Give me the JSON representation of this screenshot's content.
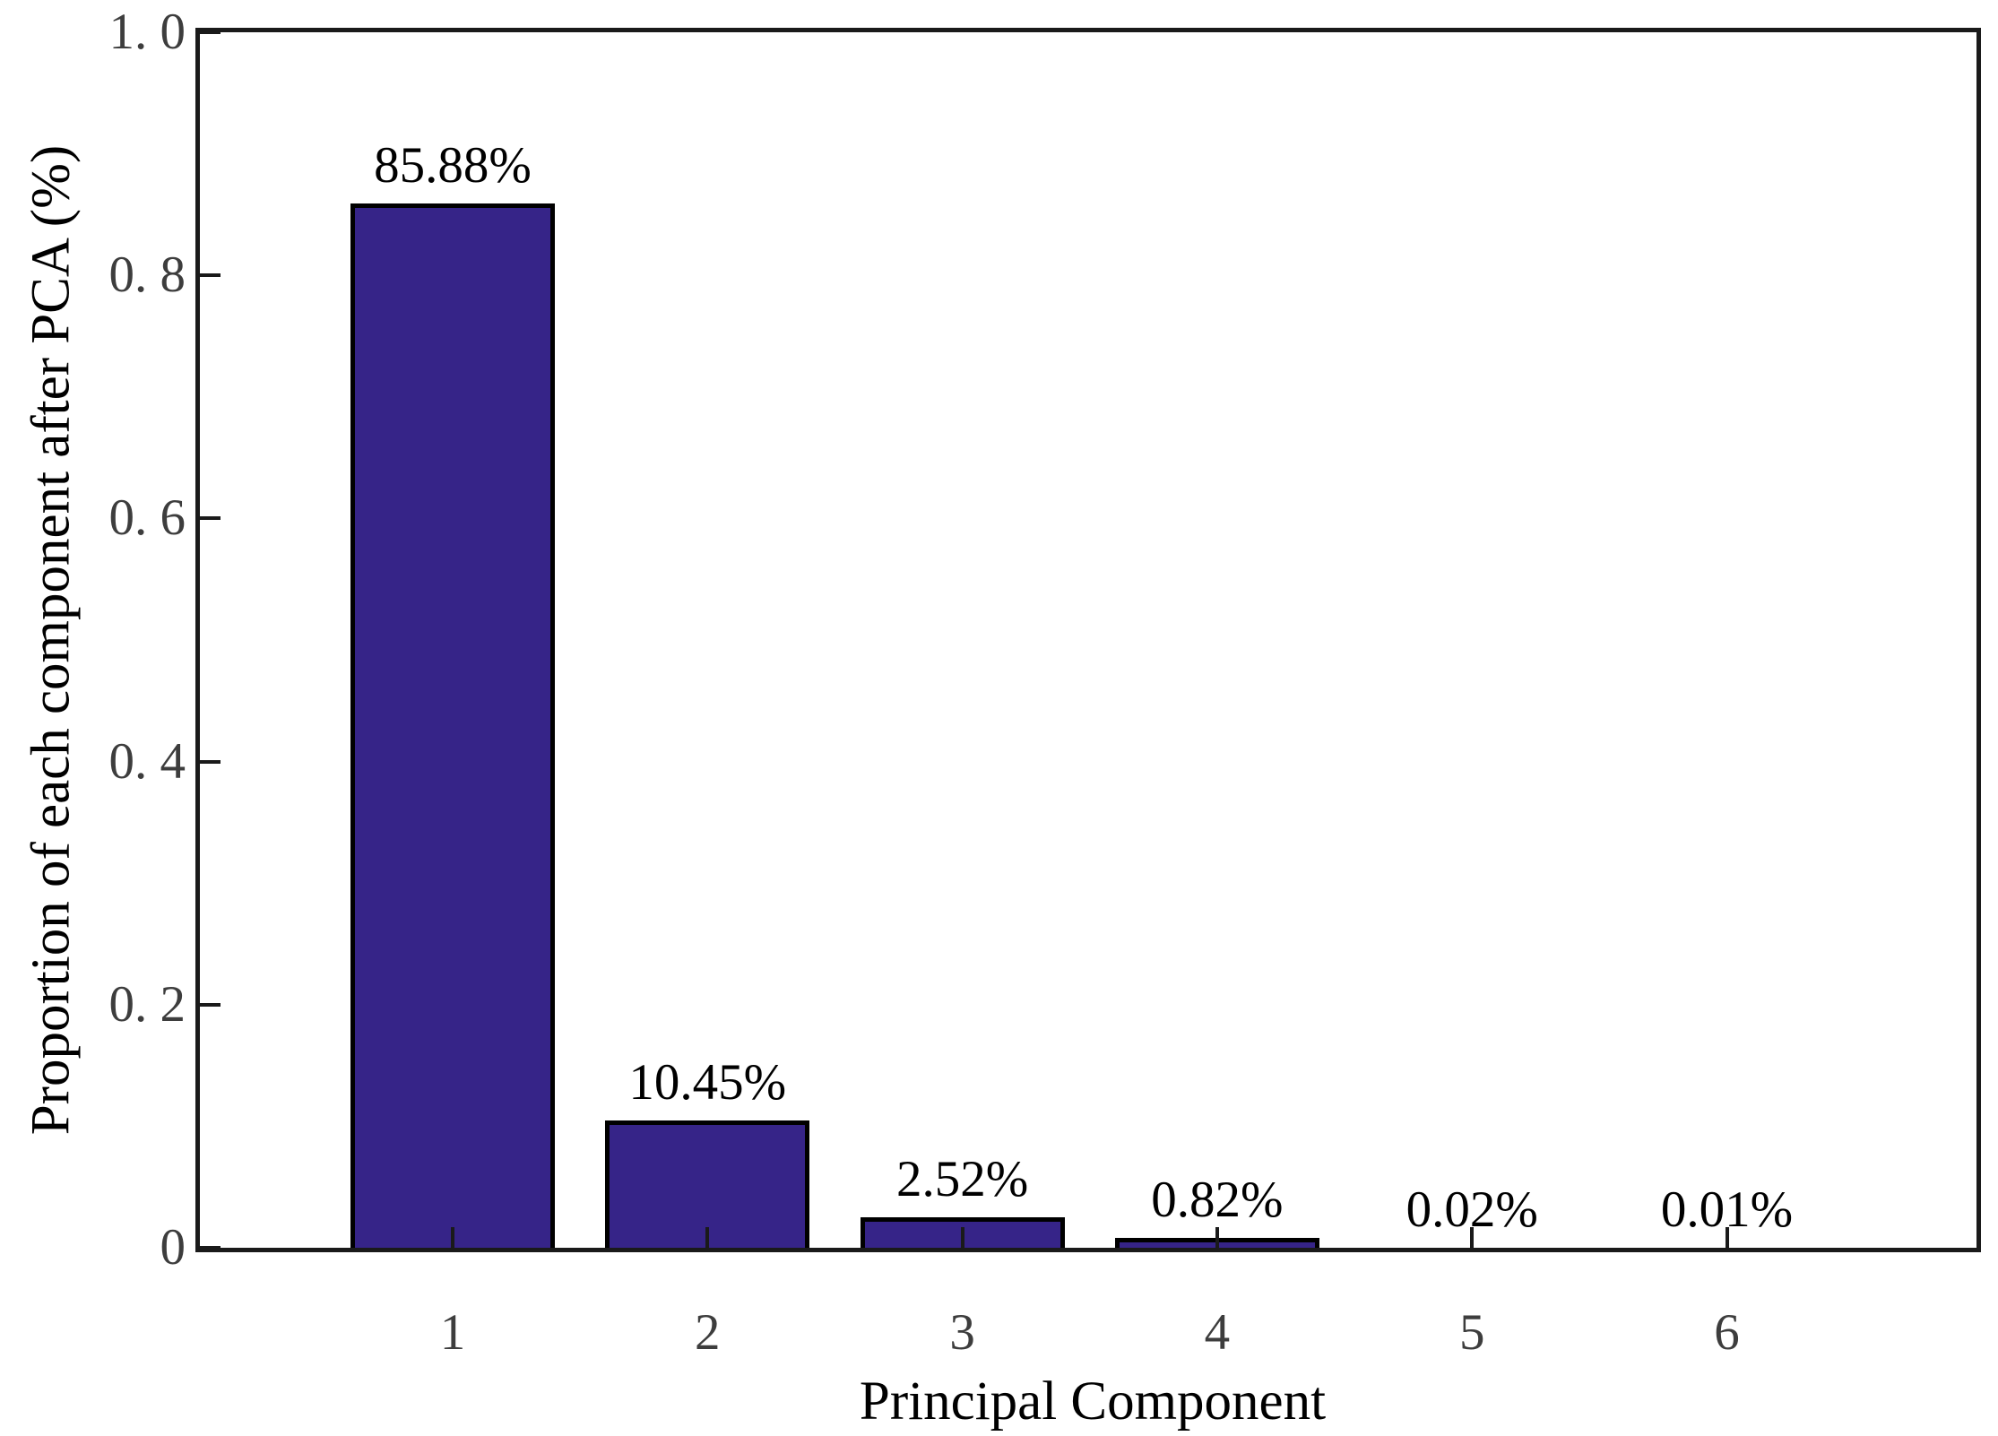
{
  "chart_data": {
    "type": "bar",
    "title": "",
    "xlabel": "Principal Component",
    "ylabel": "Proportion of each component after PCA (%)",
    "categories": [
      "1",
      "2",
      "3",
      "4",
      "5",
      "6"
    ],
    "values": [
      85.88,
      10.45,
      2.52,
      0.82,
      0.02,
      0.01
    ],
    "bar_labels": [
      "85.88%",
      "10.45%",
      "2.52%",
      "0.82%",
      "0.02%",
      "0.01%"
    ],
    "axis_fractions": [
      0.8588,
      0.1045,
      0.0252,
      0.0082,
      0.0002,
      0.0001
    ],
    "ylim": [
      0,
      1.0
    ],
    "yticks": [
      {
        "label": "0",
        "value": 0.0
      },
      {
        "label": "0. 2",
        "value": 0.2
      },
      {
        "label": "0. 4",
        "value": 0.4
      },
      {
        "label": "0. 6",
        "value": 0.6
      },
      {
        "label": "0. 8",
        "value": 0.8
      },
      {
        "label": "1. 0",
        "value": 1.0
      }
    ],
    "grid": false,
    "legend_position": "none",
    "colors": {
      "bar_fill": "#362488",
      "bar_border": "#000000",
      "spine": "#1a1a1a",
      "tick_label_color": "#3d3d3d",
      "text_color": "#000000",
      "background": "#ffffff"
    }
  }
}
